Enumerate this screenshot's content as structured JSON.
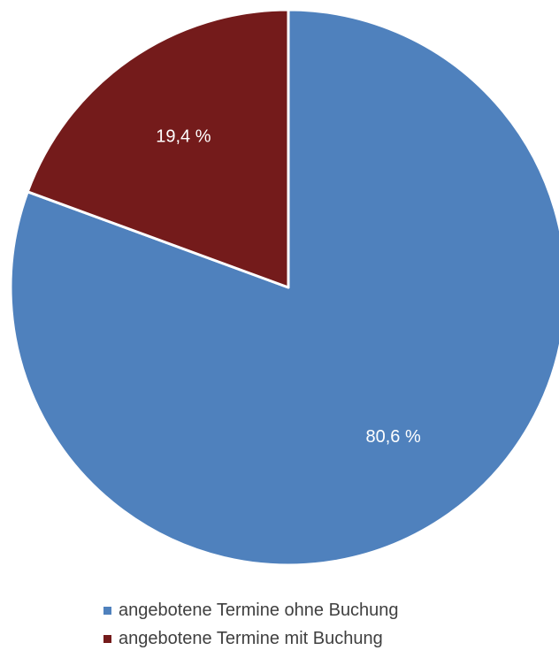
{
  "chart_data": {
    "type": "pie",
    "title": "",
    "start_angle_deg": 0,
    "direction": "clockwise",
    "slices": [
      {
        "label": "angebotene Termine ohne Buchung",
        "value": 80.6,
        "display": "80,6 %",
        "color": "#4f81bd"
      },
      {
        "label": "angebotene Termine mit Buchung",
        "value": 19.4,
        "display": "19,4 %",
        "color": "#741b1b"
      }
    ],
    "legend": {
      "placement": "bottom",
      "entries": [
        "angebotene Termine ohne Buchung",
        "angebotene Termine mit Buchung"
      ]
    }
  }
}
